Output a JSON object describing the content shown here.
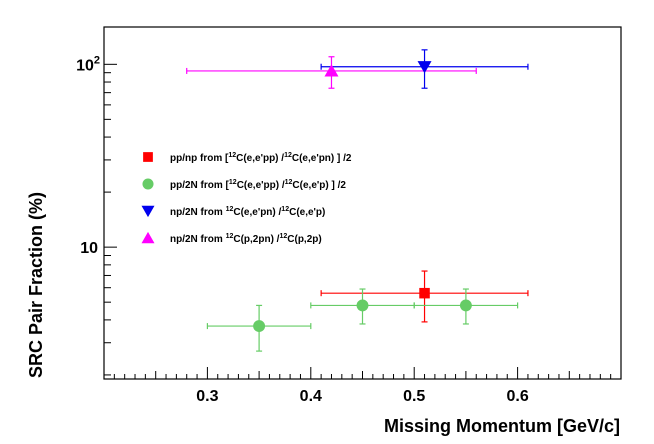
{
  "chart_data": {
    "type": "scatter",
    "title": "",
    "xlabel": "Missing Momentum [GeV/c]",
    "ylabel": "SRC Pair Fraction (%)",
    "xlim": [
      0.2,
      0.7
    ],
    "ylim": [
      1.9,
      160
    ],
    "yscale": "log",
    "grid": false,
    "legend_position": "left-middle",
    "x_ticks": [
      {
        "value": 0.3,
        "label": "0.3"
      },
      {
        "value": 0.4,
        "label": "0.4"
      },
      {
        "value": 0.5,
        "label": "0.5"
      },
      {
        "value": 0.6,
        "label": "0.6"
      }
    ],
    "y_ticks": [
      {
        "value": 10,
        "label": "10",
        "exp": ""
      },
      {
        "value": 100,
        "label": "10",
        "exp": "2"
      }
    ],
    "series": [
      {
        "name_parts": [
          "pp/np from [",
          "12",
          "C(e,e'pp) /",
          "12",
          "C(e,e'pn) ] /2"
        ],
        "marker": "square",
        "color": "#ff0000",
        "points": [
          {
            "x": 0.51,
            "y": 5.6,
            "xerr": [
              0.41,
              0.61
            ],
            "yerr": [
              3.9,
              7.4
            ]
          }
        ]
      },
      {
        "name_parts": [
          "pp/2N from [",
          "12",
          "C(e,e'pp) /",
          "12",
          "C(e,e'p) ] /2"
        ],
        "marker": "circle",
        "color": "#66cc66",
        "points": [
          {
            "x": 0.35,
            "y": 3.7,
            "xerr": [
              0.3,
              0.4
            ],
            "yerr": [
              2.7,
              4.8
            ]
          },
          {
            "x": 0.45,
            "y": 4.8,
            "xerr": [
              0.4,
              0.5
            ],
            "yerr": [
              3.8,
              5.9
            ]
          },
          {
            "x": 0.55,
            "y": 4.8,
            "xerr": [
              0.5,
              0.6
            ],
            "yerr": [
              3.8,
              5.9
            ]
          }
        ]
      },
      {
        "name_parts": [
          "np/2N from ",
          "12",
          "C(e,e'pn) /",
          "12",
          "C(e,e'p)"
        ],
        "marker": "triangle-down",
        "color": "#0000ee",
        "points": [
          {
            "x": 0.51,
            "y": 97,
            "xerr": [
              0.41,
              0.61
            ],
            "yerr": [
              74,
              120
            ]
          }
        ]
      },
      {
        "name_parts": [
          "np/2N from ",
          "12",
          "C(p,2pn) /",
          "12",
          "C(p,2p)"
        ],
        "marker": "triangle-up",
        "color": "#ff00ff",
        "points": [
          {
            "x": 0.42,
            "y": 92,
            "xerr": [
              0.28,
              0.56
            ],
            "yerr": [
              74,
              110
            ]
          }
        ]
      }
    ]
  }
}
